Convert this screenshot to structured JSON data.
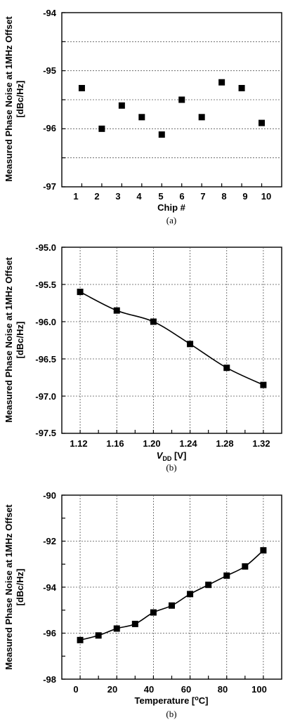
{
  "chart_data": [
    {
      "type": "scatter",
      "ylabel_line1": "Measured Phase Noise at 1MHz Offset",
      "ylabel_line2": "[dBc/Hz]",
      "xlabel": "Chip #",
      "caption": "(a)",
      "x": [
        1,
        2,
        3,
        4,
        5,
        6,
        7,
        8,
        9,
        10
      ],
      "y": [
        -95.3,
        -96.0,
        -95.6,
        -95.8,
        -96.1,
        -95.5,
        -95.8,
        -95.2,
        -95.3,
        -95.9
      ],
      "xlim": [
        0,
        11
      ],
      "ylim": [
        -97,
        -94
      ],
      "xticks": [
        "1",
        "2",
        "3",
        "4",
        "5",
        "6",
        "7",
        "8",
        "9",
        "10"
      ],
      "yticks": [
        "-94",
        "-95",
        "-96",
        "-97"
      ],
      "grid": "horizontal dashed"
    },
    {
      "type": "line",
      "ylabel_line1": "Measured Phase Noise at 1MHz Offset",
      "ylabel_line2": "[dBc/Hz]",
      "xlabel_italic": "V",
      "xlabel_sub": "DD",
      "xlabel_unit": " [V]",
      "caption": "(b)",
      "x": [
        1.12,
        1.16,
        1.2,
        1.24,
        1.28,
        1.32
      ],
      "y": [
        -95.6,
        -95.85,
        -96.0,
        -96.3,
        -96.62,
        -96.85
      ],
      "xlim": [
        1.1,
        1.34
      ],
      "ylim": [
        -97.5,
        -95.0
      ],
      "xticks": [
        "1.12",
        "1.16",
        "1.20",
        "1.24",
        "1.28",
        "1.32"
      ],
      "yticks": [
        "-95.0",
        "-95.5",
        "-96.0",
        "-96.5",
        "-97.0",
        "-97.5"
      ],
      "grid": "dashed"
    },
    {
      "type": "line",
      "ylabel_line1": "Measured Phase Noise at 1MHz Offset",
      "ylabel_line2": "[dBc/Hz]",
      "xlabel_pre": "Temperature [",
      "xlabel_sup": "o",
      "xlabel_post": "C]",
      "caption": "(b)",
      "x": [
        0,
        10,
        20,
        30,
        40,
        50,
        60,
        70,
        80,
        90,
        100
      ],
      "y": [
        -96.3,
        -96.1,
        -95.8,
        -95.6,
        -95.1,
        -94.8,
        -94.3,
        -93.9,
        -93.5,
        -93.1,
        -92.4
      ],
      "xlim": [
        -10,
        110
      ],
      "ylim": [
        -98,
        -90
      ],
      "xticks": [
        "0",
        "20",
        "40",
        "60",
        "80",
        "100"
      ],
      "yticks": [
        "-90",
        "-92",
        "-94",
        "-96",
        "-98"
      ],
      "grid": "dashed"
    }
  ]
}
